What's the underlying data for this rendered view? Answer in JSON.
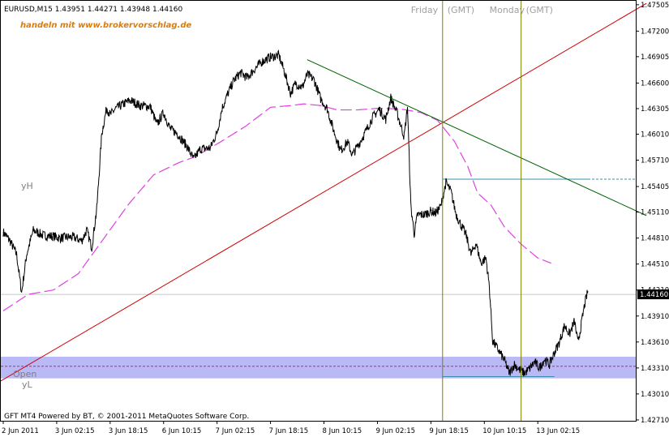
{
  "chart_data": {
    "type": "line",
    "title": "EURUSD,M15",
    "ohlc": {
      "open": "1.43951",
      "high": "1.44271",
      "low": "1.43948",
      "close": "1.44160"
    },
    "advert": "handeln mit www.brokervorschlag.de",
    "footer": "GFT MT4 Powered by BT, © 2001-2011 MetaQuotes Software Corp.",
    "ylim": [
      1.427,
      1.4755
    ],
    "y_ticks": [
      "1.47505",
      "1.47200",
      "1.46905",
      "1.46600",
      "1.46305",
      "1.46010",
      "1.45710",
      "1.45405",
      "1.45110",
      "1.44810",
      "1.44510",
      "1.44210",
      "1.43910",
      "1.43610",
      "1.43310",
      "1.43010",
      "1.42710"
    ],
    "y_tick_values": [
      1.47505,
      1.472,
      1.46905,
      1.466,
      1.46305,
      1.4601,
      1.4571,
      1.45405,
      1.4511,
      1.4481,
      1.4451,
      1.4421,
      1.4391,
      1.4361,
      1.4331,
      1.4301,
      1.4271
    ],
    "x_ticks": [
      "2 Jun 2011",
      "3 Jun 02:15",
      "3 Jun 18:15",
      "6 Jun 10:15",
      "7 Jun 02:15",
      "7 Jun 18:15",
      "8 Jun 10:15",
      "9 Jun 02:15",
      "9 Jun 18:15",
      "10 Jun 10:15",
      "13 Jun 02:15"
    ],
    "x_tick_index": [
      0,
      32,
      64,
      96,
      128,
      160,
      192,
      224,
      256,
      288,
      320
    ],
    "current_price": "1.44160",
    "current_price_value": 1.4416,
    "session_labels": [
      {
        "day": "Friday",
        "tz": "(GMT)",
        "index": 263
      },
      {
        "day": "Monday",
        "tz": "(GMT)",
        "index": 310
      }
    ],
    "annotations": {
      "yH": "yH",
      "open": "Open",
      "yL": "yL"
    },
    "zone": {
      "from": 1.4319,
      "to": 1.4344,
      "open_level": 1.4333,
      "yH_level": 1.4549,
      "yL_level": 1.4321
    },
    "trendlines": [
      {
        "name": "support",
        "color": "#d00000",
        "from": [
          -5,
          1.4312
        ],
        "to": [
          385,
          1.4752
        ]
      },
      {
        "name": "resistance",
        "color": "#006400",
        "from": [
          182,
          1.4687
        ],
        "to": [
          385,
          1.4507
        ]
      }
    ],
    "price_anchors": [
      [
        0,
        1.4488
      ],
      [
        4,
        1.4478
      ],
      [
        8,
        1.4462
      ],
      [
        11,
        1.4418
      ],
      [
        14,
        1.4462
      ],
      [
        18,
        1.449
      ],
      [
        24,
        1.4484
      ],
      [
        30,
        1.4483
      ],
      [
        34,
        1.4481
      ],
      [
        38,
        1.4482
      ],
      [
        42,
        1.4482
      ],
      [
        47,
        1.4478
      ],
      [
        50,
        1.449
      ],
      [
        53,
        1.447
      ],
      [
        56,
        1.4515
      ],
      [
        59,
        1.4602
      ],
      [
        62,
        1.4632
      ],
      [
        64,
        1.4623
      ],
      [
        67,
        1.463
      ],
      [
        72,
        1.4636
      ],
      [
        76,
        1.464
      ],
      [
        82,
        1.4634
      ],
      [
        88,
        1.4633
      ],
      [
        92,
        1.4612
      ],
      [
        96,
        1.4626
      ],
      [
        100,
        1.4607
      ],
      [
        104,
        1.4602
      ],
      [
        110,
        1.4587
      ],
      [
        114,
        1.4572
      ],
      [
        118,
        1.4584
      ],
      [
        124,
        1.4585
      ],
      [
        128,
        1.4603
      ],
      [
        131,
        1.4631
      ],
      [
        135,
        1.465
      ],
      [
        138,
        1.4663
      ],
      [
        142,
        1.4672
      ],
      [
        146,
        1.4666
      ],
      [
        150,
        1.4675
      ],
      [
        155,
        1.4685
      ],
      [
        160,
        1.469
      ],
      [
        165,
        1.4692
      ],
      [
        168,
        1.4675
      ],
      [
        172,
        1.4648
      ],
      [
        175,
        1.466
      ],
      [
        179,
        1.4655
      ],
      [
        182,
        1.467
      ],
      [
        186,
        1.4664
      ],
      [
        190,
        1.4642
      ],
      [
        194,
        1.463
      ],
      [
        198,
        1.4604
      ],
      [
        202,
        1.4582
      ],
      [
        206,
        1.4592
      ],
      [
        209,
        1.4577
      ],
      [
        213,
        1.459
      ],
      [
        217,
        1.4604
      ],
      [
        221,
        1.462
      ],
      [
        225,
        1.463
      ],
      [
        229,
        1.4618
      ],
      [
        232,
        1.4643
      ],
      [
        236,
        1.4624
      ],
      [
        240,
        1.4598
      ],
      [
        242,
        1.4633
      ],
      [
        244,
        1.4518
      ],
      [
        246,
        1.4486
      ],
      [
        248,
        1.4508
      ],
      [
        252,
        1.4508
      ],
      [
        256,
        1.4512
      ],
      [
        259,
        1.451
      ],
      [
        262,
        1.4518
      ],
      [
        265,
        1.4545
      ],
      [
        268,
        1.4535
      ],
      [
        271,
        1.4509
      ],
      [
        274,
        1.4496
      ],
      [
        277,
        1.4485
      ],
      [
        280,
        1.4462
      ],
      [
        283,
        1.4475
      ],
      [
        286,
        1.4452
      ],
      [
        289,
        1.4458
      ],
      [
        291,
        1.4425
      ],
      [
        293,
        1.4362
      ],
      [
        296,
        1.4353
      ],
      [
        300,
        1.434
      ],
      [
        303,
        1.4325
      ],
      [
        306,
        1.4335
      ],
      [
        309,
        1.4329
      ],
      [
        312,
        1.4325
      ],
      [
        315,
        1.433
      ],
      [
        318,
        1.4338
      ],
      [
        321,
        1.4331
      ],
      [
        324,
        1.4341
      ],
      [
        327,
        1.4335
      ],
      [
        330,
        1.4349
      ],
      [
        333,
        1.4361
      ],
      [
        336,
        1.438
      ],
      [
        339,
        1.437
      ],
      [
        342,
        1.4385
      ],
      [
        344,
        1.436
      ],
      [
        346,
        1.4381
      ],
      [
        348,
        1.4404
      ],
      [
        350,
        1.442
      ]
    ],
    "ma_anchors": [
      [
        0,
        1.4397
      ],
      [
        15,
        1.4416
      ],
      [
        30,
        1.4421
      ],
      [
        45,
        1.444
      ],
      [
        60,
        1.448
      ],
      [
        75,
        1.452
      ],
      [
        90,
        1.4554
      ],
      [
        105,
        1.4568
      ],
      [
        115,
        1.4575
      ],
      [
        130,
        1.4592
      ],
      [
        145,
        1.461
      ],
      [
        160,
        1.4632
      ],
      [
        172,
        1.4634
      ],
      [
        180,
        1.4636
      ],
      [
        190,
        1.4634
      ],
      [
        200,
        1.4629
      ],
      [
        212,
        1.4629
      ],
      [
        225,
        1.4631
      ],
      [
        238,
        1.463
      ],
      [
        250,
        1.4626
      ],
      [
        260,
        1.4617
      ],
      [
        270,
        1.4593
      ],
      [
        278,
        1.4564
      ],
      [
        284,
        1.4533
      ],
      [
        292,
        1.4519
      ],
      [
        300,
        1.4494
      ],
      [
        310,
        1.4474
      ],
      [
        320,
        1.4458
      ],
      [
        328,
        1.4452
      ]
    ]
  }
}
